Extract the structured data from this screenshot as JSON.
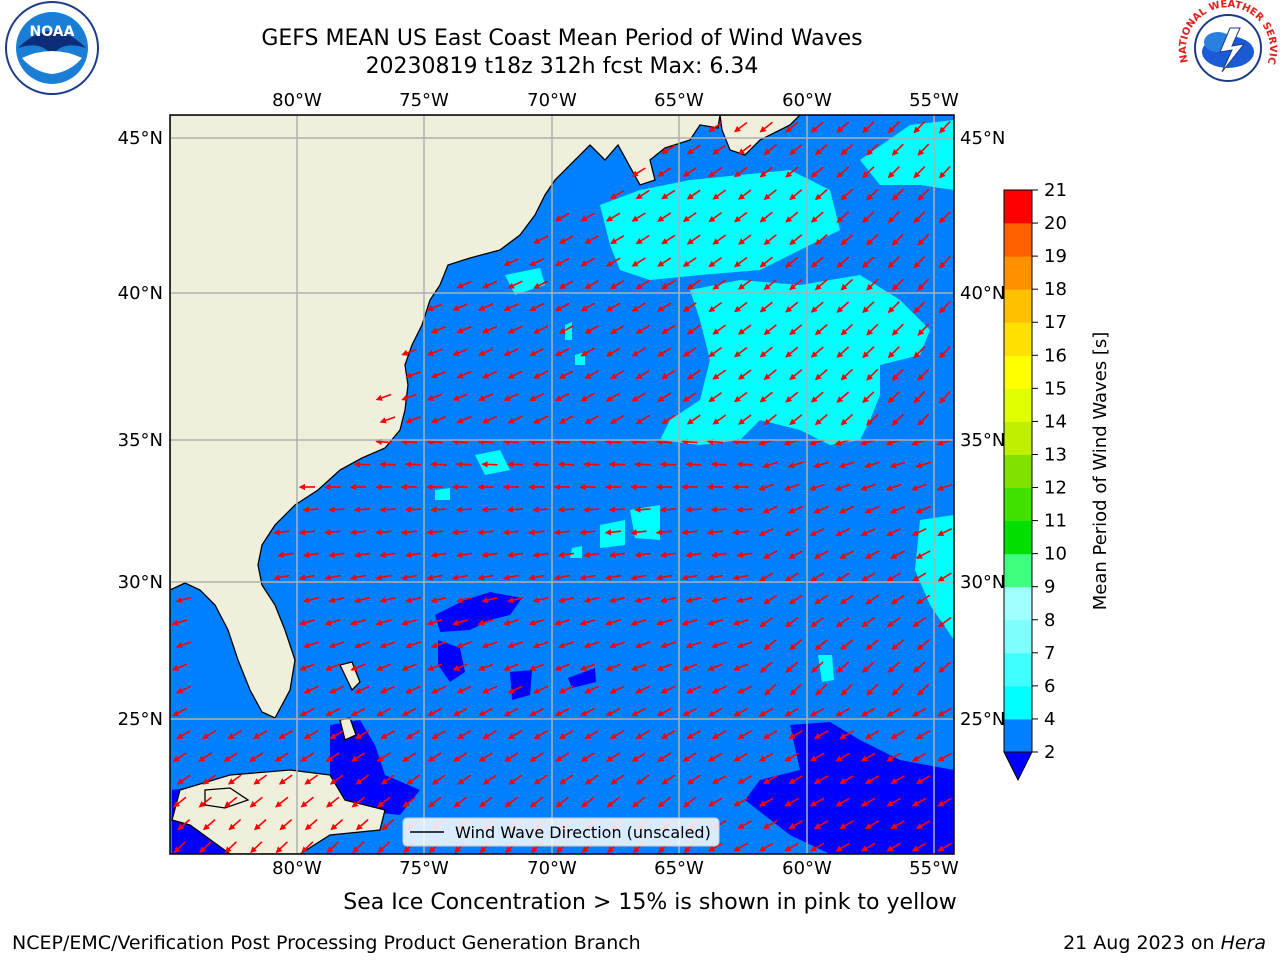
{
  "title": {
    "line1": "GEFS MEAN US East Coast Mean Period of Wind Waves",
    "line2": "20230819 t18z 312h fcst   Max: 6.34"
  },
  "logos": {
    "left": {
      "name": "noaa-logo",
      "text": "NOAA"
    },
    "right": {
      "name": "nws-logo",
      "text": "NATIONAL WEATHER SERVICE"
    }
  },
  "map": {
    "lon_ticks": [
      "80°W",
      "75°W",
      "70°W",
      "65°W",
      "60°W",
      "55°W"
    ],
    "lat_ticks": [
      "45°N",
      "40°N",
      "35°N",
      "30°N",
      "25°N"
    ],
    "extent": {
      "lon_min": -85,
      "lon_max": -54.3,
      "lat_min": 20.5,
      "lat_max": 45.8
    },
    "colors": {
      "land": "#efefdc",
      "ocean_2_4": "#0080ff",
      "ocean_lt2": "#0000ff",
      "ocean_4_6": "#00ffff",
      "arrow": "#ff0000",
      "grid": "#b0b0b0"
    },
    "legend_label": "Wind Wave Direction (unscaled)"
  },
  "colorbar": {
    "label": "Mean Period of Wind Waves [s]",
    "ticks": [
      "2",
      "4",
      "6",
      "7",
      "8",
      "9",
      "10",
      "11",
      "12",
      "13",
      "14",
      "15",
      "16",
      "17",
      "18",
      "19",
      "20",
      "21"
    ],
    "colors": [
      "#0080ff",
      "#00ffff",
      "#40ffff",
      "#80ffff",
      "#a0ffff",
      "#40ff80",
      "#00e000",
      "#40e000",
      "#80e000",
      "#c0f000",
      "#e0ff00",
      "#ffff00",
      "#ffe000",
      "#ffc000",
      "#ff9000",
      "#ff6000",
      "#ff3000",
      "#ff0000"
    ],
    "extend_color": "#0000ff"
  },
  "chart_data": {
    "type": "heatmap",
    "title": "GEFS MEAN US East Coast Mean Period of Wind Waves",
    "subtitle": "20230819 t18z 312h fcst   Max: 6.34",
    "variable": "Mean Period of Wind Waves [s]",
    "max": 6.34,
    "xlabel": "",
    "ylabel": "",
    "x_ticks": [
      "80°W",
      "75°W",
      "70°W",
      "65°W",
      "60°W",
      "55°W"
    ],
    "y_ticks": [
      "45°N",
      "40°N",
      "35°N",
      "30°N",
      "25°N"
    ],
    "levels": [
      2,
      4,
      6,
      7,
      8,
      9,
      10,
      11,
      12,
      13,
      14,
      15,
      16,
      17,
      18,
      19,
      20,
      21
    ],
    "regions": [
      {
        "range": "<2",
        "area": "Bahamas, Cuba coast, Sargasso patches, SE corner (south of 24°N, 53–60°W)"
      },
      {
        "range": "2–4",
        "area": "most of the western Atlantic basin"
      },
      {
        "range": "4–6.34",
        "area": "north-central Atlantic 36–44°N, 57–67°W; coastal patches; east edge near 28–32°N"
      }
    ],
    "grid": true,
    "legend": "bottom-center"
  },
  "note": "Sea Ice Concentration > 15% is shown in pink to yellow",
  "footer": {
    "left": "NCEP/EMC/Verification Post Processing Product Generation Branch",
    "right_date": "21 Aug 2023 on ",
    "right_host": "Hera"
  }
}
